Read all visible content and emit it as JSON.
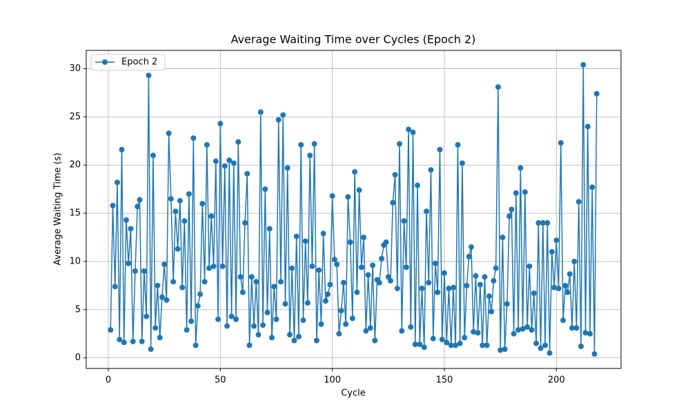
{
  "chart_data": {
    "type": "line",
    "title": "Average Waiting Time over Cycles (Epoch 2)",
    "xlabel": "Cycle",
    "ylabel": "Average Waiting Time (s)",
    "x": [
      1,
      2,
      3,
      4,
      5,
      6,
      7,
      8,
      9,
      10,
      11,
      12,
      13,
      14,
      15,
      16,
      17,
      18,
      19,
      20,
      21,
      22,
      23,
      24,
      25,
      26,
      27,
      28,
      29,
      30,
      31,
      32,
      33,
      34,
      35,
      36,
      37,
      38,
      39,
      40,
      41,
      42,
      43,
      44,
      45,
      46,
      47,
      48,
      49,
      50,
      51,
      52,
      53,
      54,
      55,
      56,
      57,
      58,
      59,
      60,
      61,
      62,
      63,
      64,
      65,
      66,
      67,
      68,
      69,
      70,
      71,
      72,
      73,
      74,
      75,
      76,
      77,
      78,
      79,
      80,
      81,
      82,
      83,
      84,
      85,
      86,
      87,
      88,
      89,
      90,
      91,
      92,
      93,
      94,
      95,
      96,
      97,
      98,
      99,
      100,
      101,
      102,
      103,
      104,
      105,
      106,
      107,
      108,
      109,
      110,
      111,
      112,
      113,
      114,
      115,
      116,
      117,
      118,
      119,
      120,
      121,
      122,
      123,
      124,
      125,
      126,
      127,
      128,
      129,
      130,
      131,
      132,
      133,
      134,
      135,
      136,
      137,
      138,
      139,
      140,
      141,
      142,
      143,
      144,
      145,
      146,
      147,
      148,
      149,
      150,
      151,
      152,
      153,
      154,
      155,
      156,
      157,
      158,
      159,
      160,
      161,
      162,
      163,
      164,
      165,
      166,
      167,
      168,
      169,
      170,
      171,
      172,
      173,
      174,
      175,
      176,
      177,
      178,
      179,
      180,
      181,
      182,
      183,
      184,
      185,
      186,
      187,
      188,
      189,
      190,
      191,
      192,
      193,
      194,
      195,
      196,
      197,
      198,
      199,
      200,
      201,
      202,
      203,
      204,
      205,
      206,
      207,
      208,
      209,
      210,
      211,
      212,
      213,
      214,
      215,
      216,
      217,
      218
    ],
    "series": [
      {
        "name": "Epoch 2",
        "color": "#1f77b4",
        "values": [
          2.9,
          15.8,
          7.4,
          18.2,
          1.9,
          21.6,
          1.6,
          14.3,
          9.8,
          13.4,
          1.7,
          9.0,
          15.7,
          16.4,
          1.7,
          9.0,
          4.3,
          29.3,
          0.9,
          21.0,
          3.1,
          7.5,
          2.1,
          6.3,
          9.7,
          6.0,
          23.3,
          16.5,
          7.9,
          15.2,
          11.3,
          16.3,
          7.3,
          14.2,
          2.9,
          17.0,
          3.8,
          22.8,
          1.3,
          5.4,
          6.6,
          16.0,
          7.9,
          22.1,
          9.3,
          14.7,
          9.5,
          20.4,
          4.0,
          24.3,
          9.5,
          19.9,
          3.3,
          20.5,
          4.3,
          20.2,
          4.0,
          22.4,
          8.4,
          6.8,
          14.0,
          19.1,
          1.3,
          8.4,
          3.3,
          7.9,
          2.4,
          25.5,
          3.4,
          17.5,
          4.7,
          13.4,
          2.1,
          7.4,
          4.0,
          24.7,
          7.9,
          25.2,
          5.6,
          19.7,
          2.4,
          9.3,
          1.8,
          12.6,
          2.2,
          22.1,
          3.9,
          12.1,
          5.7,
          21.0,
          9.5,
          22.2,
          1.8,
          9.1,
          3.5,
          12.9,
          5.9,
          6.6,
          7.6,
          16.8,
          10.2,
          9.7,
          2.5,
          4.9,
          7.8,
          3.5,
          16.7,
          12.0,
          4.1,
          19.3,
          6.8,
          17.4,
          9.4,
          12.5,
          2.8,
          8.6,
          3.1,
          9.6,
          1.8,
          8.1,
          7.8,
          10.3,
          11.7,
          12.0,
          8.4,
          8.0,
          16.1,
          19.0,
          7.2,
          22.2,
          2.8,
          14.2,
          9.4,
          23.7,
          3.2,
          23.4,
          1.4,
          17.9,
          1.4,
          7.2,
          1.1,
          15.2,
          7.8,
          19.5,
          2.0,
          9.8,
          6.8,
          21.6,
          1.9,
          8.8,
          1.6,
          7.2,
          1.3,
          7.3,
          1.3,
          22.1,
          1.5,
          20.2,
          2.1,
          7.5,
          10.5,
          11.5,
          2.7,
          8.5,
          2.6,
          7.6,
          1.3,
          8.4,
          1.3,
          6.4,
          4.8,
          8.0,
          9.3,
          28.1,
          0.8,
          12.5,
          0.9,
          5.6,
          14.7,
          15.4,
          2.5,
          17.1,
          2.9,
          19.7,
          3.0,
          17.2,
          3.2,
          9.5,
          2.9,
          6.7,
          1.5,
          14.0,
          1.0,
          14.0,
          1.3,
          14.0,
          0.5,
          11.0,
          7.3,
          12.2,
          7.2,
          22.3,
          3.9,
          7.5,
          6.8,
          8.7,
          3.1,
          10.0,
          3.1,
          16.2,
          1.2,
          30.4,
          2.6,
          24.0,
          2.5,
          17.7,
          0.4,
          27.4
        ]
      }
    ],
    "xlim": [
      -9.85,
      228.85
    ],
    "ylim": [
      -1.1,
      31.9
    ],
    "xticks": [
      0,
      50,
      100,
      150,
      200
    ],
    "yticks": [
      0,
      5,
      10,
      15,
      20,
      25,
      30
    ],
    "grid": true,
    "legend": "upper left"
  }
}
